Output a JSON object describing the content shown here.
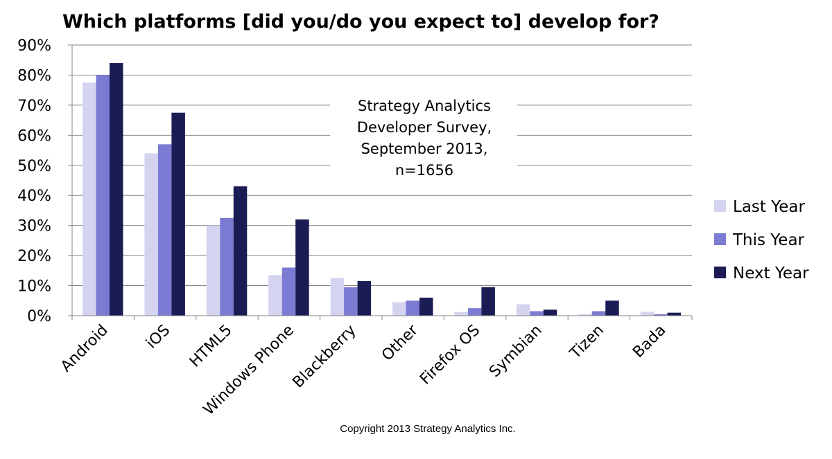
{
  "chart_data": {
    "type": "bar",
    "title": "Which platforms [did you/do you expect to] develop for?",
    "categories": [
      "Android",
      "iOS",
      "HTML5",
      "Windows Phone",
      "Blackberry",
      "Other",
      "Firefox OS",
      "Symbian",
      "Tizen",
      "Bada"
    ],
    "series": [
      {
        "name": "Last Year",
        "color": "#d4d4f0",
        "values": [
          77.5,
          54,
          30,
          13.5,
          12.5,
          4.5,
          1.2,
          3.8,
          0.5,
          1.3
        ]
      },
      {
        "name": "This Year",
        "color": "#7b7bd3",
        "values": [
          80,
          57,
          32.5,
          16,
          9.5,
          5,
          2.5,
          1.5,
          1.5,
          0.5
        ]
      },
      {
        "name": "Next Year",
        "color": "#1c1c55",
        "values": [
          84,
          67.5,
          43,
          32,
          11.5,
          6,
          9.5,
          2,
          5,
          1
        ]
      }
    ],
    "ylim": [
      0,
      90
    ],
    "yticks": [
      0,
      10,
      20,
      30,
      40,
      50,
      60,
      70,
      80,
      90
    ],
    "ytick_labels": [
      "0%",
      "10%",
      "20%",
      "30%",
      "40%",
      "50%",
      "60%",
      "70%",
      "80%",
      "90%"
    ],
    "xlabel": "",
    "ylabel": "",
    "grid": true,
    "legend_position": "right",
    "annotation_lines": [
      "Strategy Analytics",
      "Developer Survey,",
      "September 2013,",
      "n=1656"
    ],
    "footer": "Copyright 2013 Strategy Analytics Inc."
  }
}
